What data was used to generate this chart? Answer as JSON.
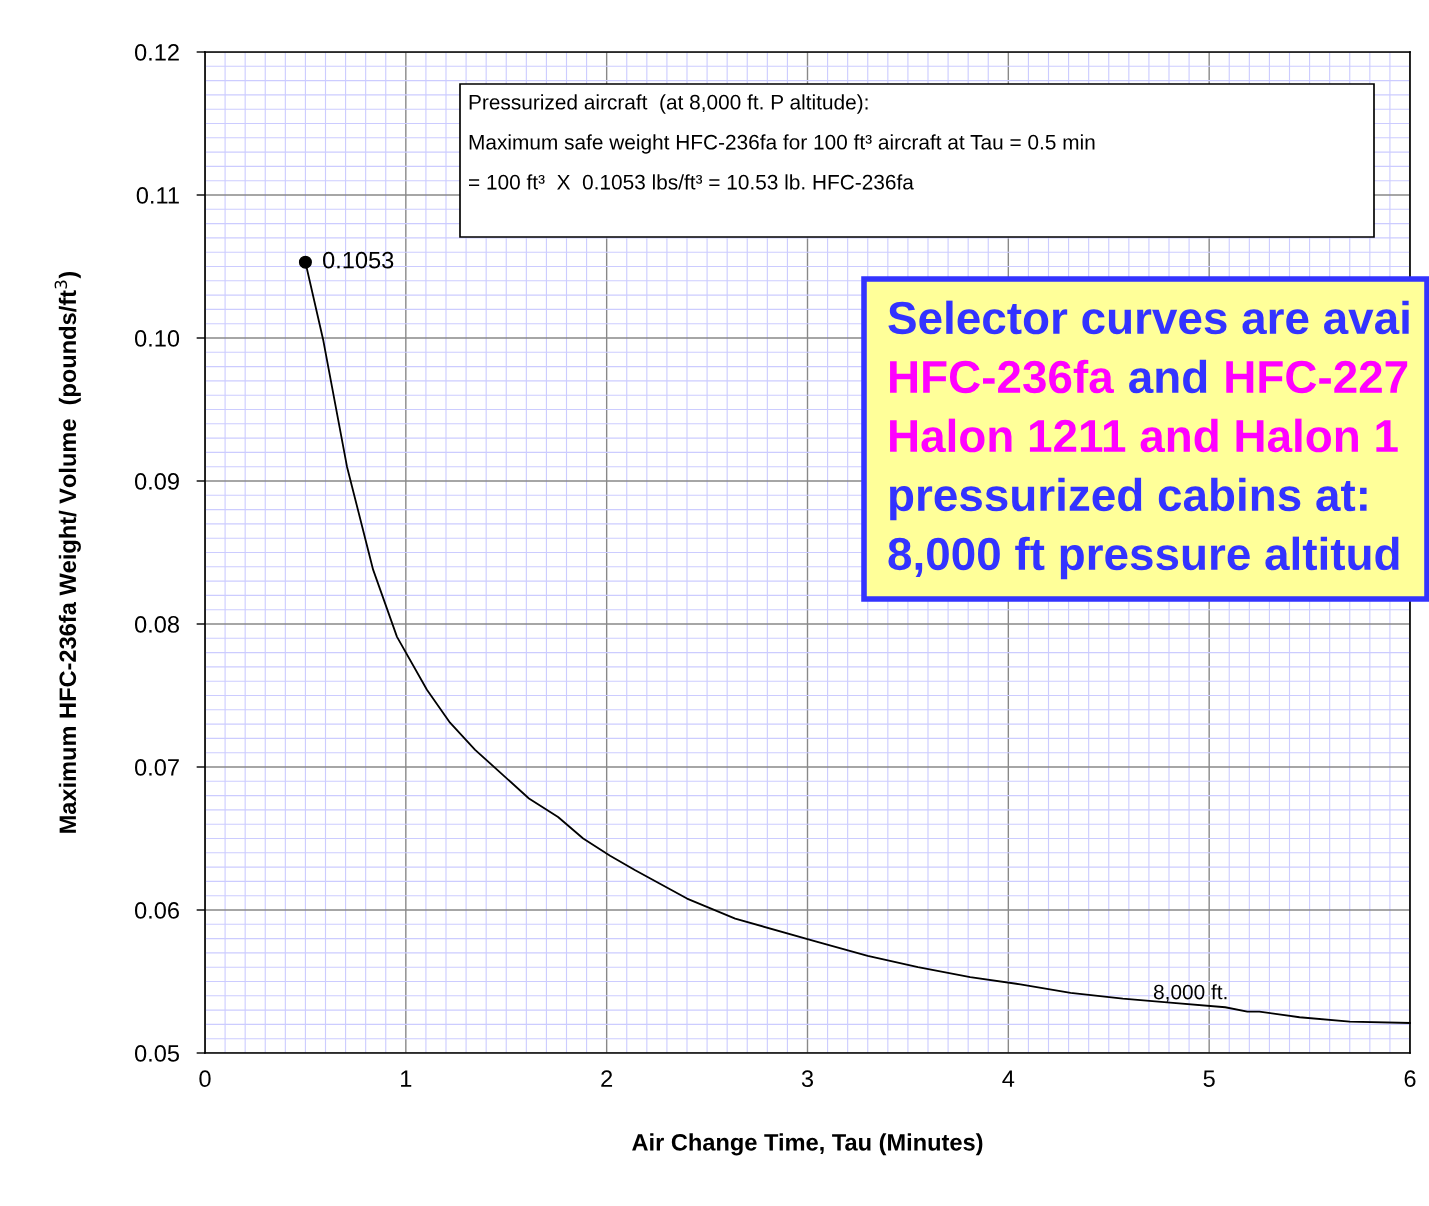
{
  "chart_data": {
    "type": "line",
    "xlabel": "Air Change Time, Tau (Minutes)",
    "ylabel": "Maximum HFC-236fa Weight/ Volume  (pounds/ft$^{3}$)",
    "xlim": [
      0,
      6
    ],
    "xticks": [
      0,
      {
        "value": 0.1,
        "label": null
      },
      {
        "value": 0.2,
        "label": null
      },
      {
        "value": 0.3,
        "label": null
      },
      {
        "value": 0.4,
        "label": null
      },
      {
        "value": 0.5,
        "label": null
      },
      {
        "value": 0.6,
        "label": null
      },
      {
        "value": 0.7,
        "label": null
      },
      {
        "value": 0.8,
        "label": null
      },
      {
        "value": 0.9,
        "label": null
      },
      1,
      {
        "value": 1.1,
        "label": null
      },
      {
        "value": 1.2,
        "label": null
      },
      {
        "value": 1.3,
        "label": null
      },
      {
        "value": 1.4,
        "label": null
      },
      {
        "value": 1.5,
        "label": null
      },
      {
        "value": 1.6,
        "label": null
      },
      {
        "value": 1.7,
        "label": null
      },
      {
        "value": 1.8,
        "label": null
      },
      {
        "value": 1.9,
        "label": null
      },
      2,
      {
        "value": 2.1,
        "label": null
      },
      {
        "value": 2.2,
        "label": null
      },
      {
        "value": 2.3,
        "label": null
      },
      {
        "value": 2.4,
        "label": null
      },
      {
        "value": 2.5,
        "label": null
      },
      {
        "value": 2.6,
        "label": null
      },
      {
        "value": 2.7,
        "label": null
      },
      {
        "value": 2.8,
        "label": null
      },
      {
        "value": 2.9,
        "label": null
      },
      3,
      {
        "value": 3.1,
        "label": null
      },
      {
        "value": 3.2,
        "label": null
      },
      {
        "value": 3.3,
        "label": null
      },
      {
        "value": 3.4,
        "label": null
      },
      {
        "value": 3.5,
        "label": null
      },
      {
        "value": 3.6,
        "label": null
      },
      {
        "value": 3.7,
        "label": null
      },
      {
        "value": 3.8,
        "label": null
      },
      {
        "value": 3.9,
        "label": null
      },
      4,
      {
        "value": 4.1,
        "label": null
      },
      {
        "value": 4.2,
        "label": null
      },
      {
        "value": 4.3,
        "label": null
      },
      {
        "value": 4.4,
        "label": null
      },
      {
        "value": 4.5,
        "label": null
      },
      {
        "value": 4.6,
        "label": null
      },
      {
        "value": 4.7,
        "label": null
      },
      {
        "value": 4.8,
        "label": null
      },
      {
        "value": 4.9,
        "label": null
      },
      5,
      {
        "value": 5.1,
        "label": null
      },
      {
        "value": 5.2,
        "label": null
      },
      {
        "value": 5.3,
        "label": null
      },
      {
        "value": 5.4,
        "label": null
      },
      {
        "value": 5.5,
        "label": null
      },
      {
        "value": 5.6,
        "label": null
      },
      {
        "value": 5.7,
        "label": null
      },
      {
        "value": 5.8,
        "label": null
      },
      {
        "value": 5.9,
        "label": null
      },
      6
    ],
    "ylim": [
      0.05,
      0.12
    ],
    "yticks": [
      {
        "value": 0.05,
        "label": "0.05"
      },
      {
        "value": 0.051,
        "label": null
      },
      {
        "value": 0.052,
        "label": null
      },
      {
        "value": 0.053,
        "label": null
      },
      {
        "value": 0.054,
        "label": null
      },
      {
        "value": 0.055,
        "label": null
      },
      {
        "value": 0.056,
        "label": null
      },
      {
        "value": 0.057,
        "label": null
      },
      {
        "value": 0.058,
        "label": null
      },
      {
        "value": 0.059,
        "label": null
      },
      {
        "value": 0.06,
        "label": "0.06"
      },
      {
        "value": 0.061,
        "label": null
      },
      {
        "value": 0.062,
        "label": null
      },
      {
        "value": 0.063,
        "label": null
      },
      {
        "value": 0.064,
        "label": null
      },
      {
        "value": 0.065,
        "label": null
      },
      {
        "value": 0.066,
        "label": null
      },
      {
        "value": 0.067,
        "label": null
      },
      {
        "value": 0.068,
        "label": null
      },
      {
        "value": 0.069,
        "label": null
      },
      {
        "value": 0.07,
        "label": "0.07"
      },
      {
        "value": 0.071,
        "label": null
      },
      {
        "value": 0.072,
        "label": null
      },
      {
        "value": 0.073,
        "label": null
      },
      {
        "value": 0.074,
        "label": null
      },
      {
        "value": 0.075,
        "label": null
      },
      {
        "value": 0.076,
        "label": null
      },
      {
        "value": 0.077,
        "label": null
      },
      {
        "value": 0.078,
        "label": null
      },
      {
        "value": 0.079,
        "label": null
      },
      {
        "value": 0.08,
        "label": "0.08"
      },
      {
        "value": 0.081,
        "label": null
      },
      {
        "value": 0.082,
        "label": null
      },
      {
        "value": 0.083,
        "label": null
      },
      {
        "value": 0.084,
        "label": null
      },
      {
        "value": 0.085,
        "label": null
      },
      {
        "value": 0.086,
        "label": null
      },
      {
        "value": 0.087,
        "label": null
      },
      {
        "value": 0.088,
        "label": null
      },
      {
        "value": 0.089,
        "label": null
      },
      {
        "value": 0.09,
        "label": "0.09"
      },
      {
        "value": 0.091,
        "label": null
      },
      {
        "value": 0.092,
        "label": null
      },
      {
        "value": 0.093,
        "label": null
      },
      {
        "value": 0.094,
        "label": null
      },
      {
        "value": 0.095,
        "label": null
      },
      {
        "value": 0.096,
        "label": null
      },
      {
        "value": 0.097,
        "label": null
      },
      {
        "value": 0.098,
        "label": null
      },
      {
        "value": 0.099,
        "label": null
      },
      {
        "value": 0.1,
        "label": "0.10"
      },
      {
        "value": 0.101,
        "label": null
      },
      {
        "value": 0.102,
        "label": null
      },
      {
        "value": 0.103,
        "label": null
      },
      {
        "value": 0.104,
        "label": null
      },
      {
        "value": 0.105,
        "label": null
      },
      {
        "value": 0.106,
        "label": null
      },
      {
        "value": 0.107,
        "label": null
      },
      {
        "value": 0.108,
        "label": null
      },
      {
        "value": 0.109,
        "label": null
      },
      {
        "value": 0.11,
        "label": "0.11"
      },
      {
        "value": 0.111,
        "label": null
      },
      {
        "value": 0.112,
        "label": null
      },
      {
        "value": 0.113,
        "label": null
      },
      {
        "value": 0.114,
        "label": null
      },
      {
        "value": 0.115,
        "label": null
      },
      {
        "value": 0.116,
        "label": null
      },
      {
        "value": 0.117,
        "label": null
      },
      {
        "value": 0.118,
        "label": null
      },
      {
        "value": 0.119,
        "label": null
      },
      {
        "value": 0.12,
        "label": "0.12"
      }
    ],
    "grid": true,
    "series": [
      {
        "name": "8,000 ft.",
        "color": "#000000",
        "marker": "none",
        "line_style": "solid",
        "x": [
          0.5,
          0.588,
          0.707,
          0.837,
          0.956,
          1.105,
          1.22,
          1.345,
          1.613,
          1.758,
          1.883,
          2.017,
          2.14,
          2.4,
          2.64,
          3.04,
          3.3,
          3.55,
          3.81,
          4.06,
          4.31,
          4.57,
          4.82,
          5.08,
          5.19,
          5.25,
          5.45,
          5.7,
          6.0
        ],
        "values": [
          0.1053,
          0.0999,
          0.091,
          0.0838,
          0.0791,
          0.0754,
          0.0731,
          0.0712,
          0.0678,
          0.0665,
          0.065,
          0.0638,
          0.0628,
          0.0608,
          0.0594,
          0.0578,
          0.0568,
          0.056,
          0.0553,
          0.0548,
          0.0542,
          0.0538,
          0.0535,
          0.0532,
          0.0529,
          0.0529,
          0.0525,
          0.0522,
          0.0521
        ]
      },
      {
        "type": "scatter",
        "color": "#000000",
        "marker": "circle",
        "x": [
          0.5
        ],
        "values": [
          0.1053
        ],
        "value_labels": [
          "0.1053"
        ]
      }
    ],
    "annotations": [
      "Pressurized aircraft  (at 8,000 ft. P altitude):",
      "Maximum safe weight HFC-236fa for 100 ft³ aircraft at Tau = 0.5 min",
      "= 100 ft³  X  0.1053 lbs/ft³ = 10.53 lb. HFC-236fa",
      "Selector curves are avai",
      "HFC-236fa",
      "and",
      "HFC-227",
      "Halon 1211 and Halon 1",
      "pressurized cabins at:",
      "8,000 ft pressure altitud"
    ]
  }
}
